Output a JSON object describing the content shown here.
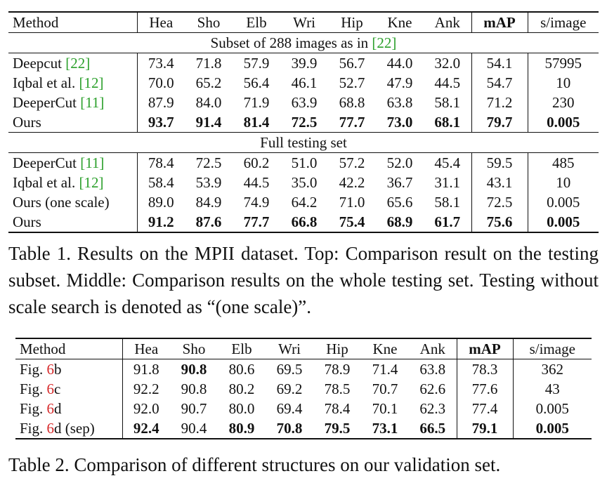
{
  "table1": {
    "headers": [
      "Method",
      "Hea",
      "Sho",
      "Elb",
      "Wri",
      "Hip",
      "Kne",
      "Ank",
      "mAP",
      "s/image"
    ],
    "section1_title": "Subset of 288 images as in",
    "section1_ref": "[22]",
    "section1_rows": [
      {
        "name": "Deepcut",
        "ref": "[22]",
        "values": [
          "73.4",
          "71.8",
          "57.9",
          "39.9",
          "56.7",
          "44.0",
          "32.0",
          "54.1",
          "57995"
        ]
      },
      {
        "name": "Iqbal et al.",
        "ref": "[12]",
        "values": [
          "70.0",
          "65.2",
          "56.4",
          "46.1",
          "52.7",
          "47.9",
          "44.5",
          "54.7",
          "10"
        ]
      },
      {
        "name": "DeeperCut",
        "ref": "[11]",
        "values": [
          "87.9",
          "84.0",
          "71.9",
          "63.9",
          "68.8",
          "63.8",
          "58.1",
          "71.2",
          "230"
        ]
      },
      {
        "name": "Ours",
        "ref": "",
        "values": [
          "93.7",
          "91.4",
          "81.4",
          "72.5",
          "77.7",
          "73.0",
          "68.1",
          "79.7",
          "0.005"
        ]
      }
    ],
    "section2_title": "Full testing set",
    "section2_rows": [
      {
        "name": "DeeperCut",
        "ref": "[11]",
        "values": [
          "78.4",
          "72.5",
          "60.2",
          "51.0",
          "57.2",
          "52.0",
          "45.4",
          "59.5",
          "485"
        ]
      },
      {
        "name": "Iqbal et al.",
        "ref": "[12]",
        "values": [
          "58.4",
          "53.9",
          "44.5",
          "35.0",
          "42.2",
          "36.7",
          "31.1",
          "43.1",
          "10"
        ]
      },
      {
        "name": "Ours (one scale)",
        "ref": "",
        "values": [
          "89.0",
          "84.9",
          "74.9",
          "64.2",
          "71.0",
          "65.6",
          "58.1",
          "72.5",
          "0.005"
        ]
      },
      {
        "name": "Ours",
        "ref": "",
        "values": [
          "91.2",
          "87.6",
          "77.7",
          "66.8",
          "75.4",
          "68.9",
          "61.7",
          "75.6",
          "0.005"
        ]
      }
    ],
    "caption": "Table 1. Results on the MPII dataset. Top: Comparison result on the testing subset. Middle: Comparison results on the whole testing set. Testing without scale search is denoted as “(one scale)”."
  },
  "table2": {
    "headers": [
      "Method",
      "Hea",
      "Sho",
      "Elb",
      "Wri",
      "Hip",
      "Kne",
      "Ank",
      "mAP",
      "s/image"
    ],
    "rows": [
      {
        "prefix": "Fig. ",
        "num": "6",
        "suffix": "b",
        "values": [
          "91.8",
          "90.8",
          "80.6",
          "69.5",
          "78.9",
          "71.4",
          "63.8",
          "78.3",
          "362"
        ]
      },
      {
        "prefix": "Fig. ",
        "num": "6",
        "suffix": "c",
        "values": [
          "92.2",
          "90.8",
          "80.2",
          "69.2",
          "78.5",
          "70.7",
          "62.6",
          "77.6",
          "43"
        ]
      },
      {
        "prefix": "Fig. ",
        "num": "6",
        "suffix": "d",
        "values": [
          "92.0",
          "90.7",
          "80.0",
          "69.4",
          "78.4",
          "70.1",
          "62.3",
          "77.4",
          "0.005"
        ]
      },
      {
        "prefix": "Fig. ",
        "num": "6",
        "suffix": "d (sep)",
        "values": [
          "92.4",
          "90.4",
          "80.9",
          "70.8",
          "79.5",
          "73.1",
          "66.5",
          "79.1",
          "0.005"
        ]
      }
    ],
    "caption": "Table 2. Comparison of different structures on our validation set."
  },
  "colors": {
    "citation": "#2ca02c",
    "figure_ref": "#d62728"
  }
}
